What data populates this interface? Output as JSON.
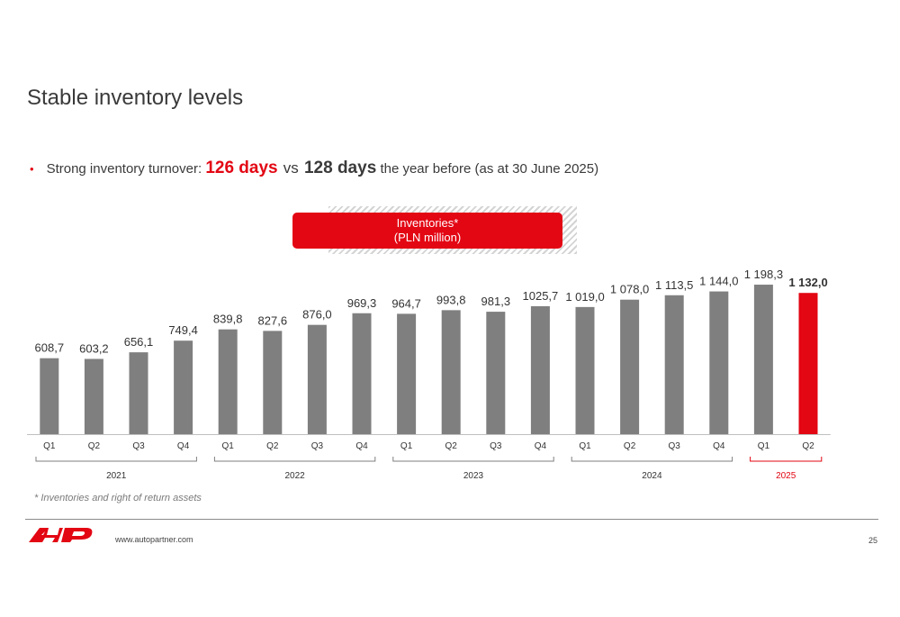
{
  "slide": {
    "title": "Stable inventory levels",
    "bullet": {
      "marker": "•",
      "prefix": "Strong inventory turnover: ",
      "highlight_current": "126 days",
      "vs": "vs",
      "highlight_previous": "128 days",
      "suffix": "the year before (as at 30 June 2025)"
    },
    "legend": {
      "line1": "Inventories*",
      "line2": "(PLN million)"
    },
    "footnote": "* Inventories and right of return assets",
    "website": "www.autopartner.com",
    "page_number": "25"
  },
  "colors": {
    "accent": "#e30613",
    "bar": "#7f7f7f",
    "text": "#333333"
  },
  "chart_data": {
    "type": "bar",
    "series": [
      {
        "name": "Inventories*",
        "values": [
          608.7,
          603.2,
          656.1,
          749.4,
          839.8,
          827.6,
          876.0,
          969.3,
          964.7,
          993.8,
          981.3,
          1025.7,
          1019.0,
          1078.0,
          1113.5,
          1144.0,
          1198.3,
          1132.0
        ]
      }
    ],
    "categories": [
      "Q1",
      "Q2",
      "Q3",
      "Q4",
      "Q1",
      "Q2",
      "Q3",
      "Q4",
      "Q1",
      "Q2",
      "Q3",
      "Q4",
      "Q1",
      "Q2",
      "Q3",
      "Q4",
      "Q1",
      "Q2"
    ],
    "data_labels": [
      "608,7",
      "603,2",
      "656,1",
      "749,4",
      "839,8",
      "827,6",
      "876,0",
      "969,3",
      "964,7",
      "993,8",
      "981,3",
      "1025,7",
      "1 019,0",
      "1 078,0",
      "1 113,5",
      "1 144,0",
      "1 198,3",
      "1 132,0"
    ],
    "highlight_index": 17,
    "groups": [
      {
        "label": "2021",
        "start": 0,
        "end": 3
      },
      {
        "label": "2022",
        "start": 4,
        "end": 7
      },
      {
        "label": "2023",
        "start": 8,
        "end": 11
      },
      {
        "label": "2024",
        "start": 12,
        "end": 15
      },
      {
        "label": "2025",
        "start": 16,
        "end": 17,
        "highlight": true
      }
    ],
    "ylim": [
      0,
      1300
    ],
    "grid": false
  }
}
